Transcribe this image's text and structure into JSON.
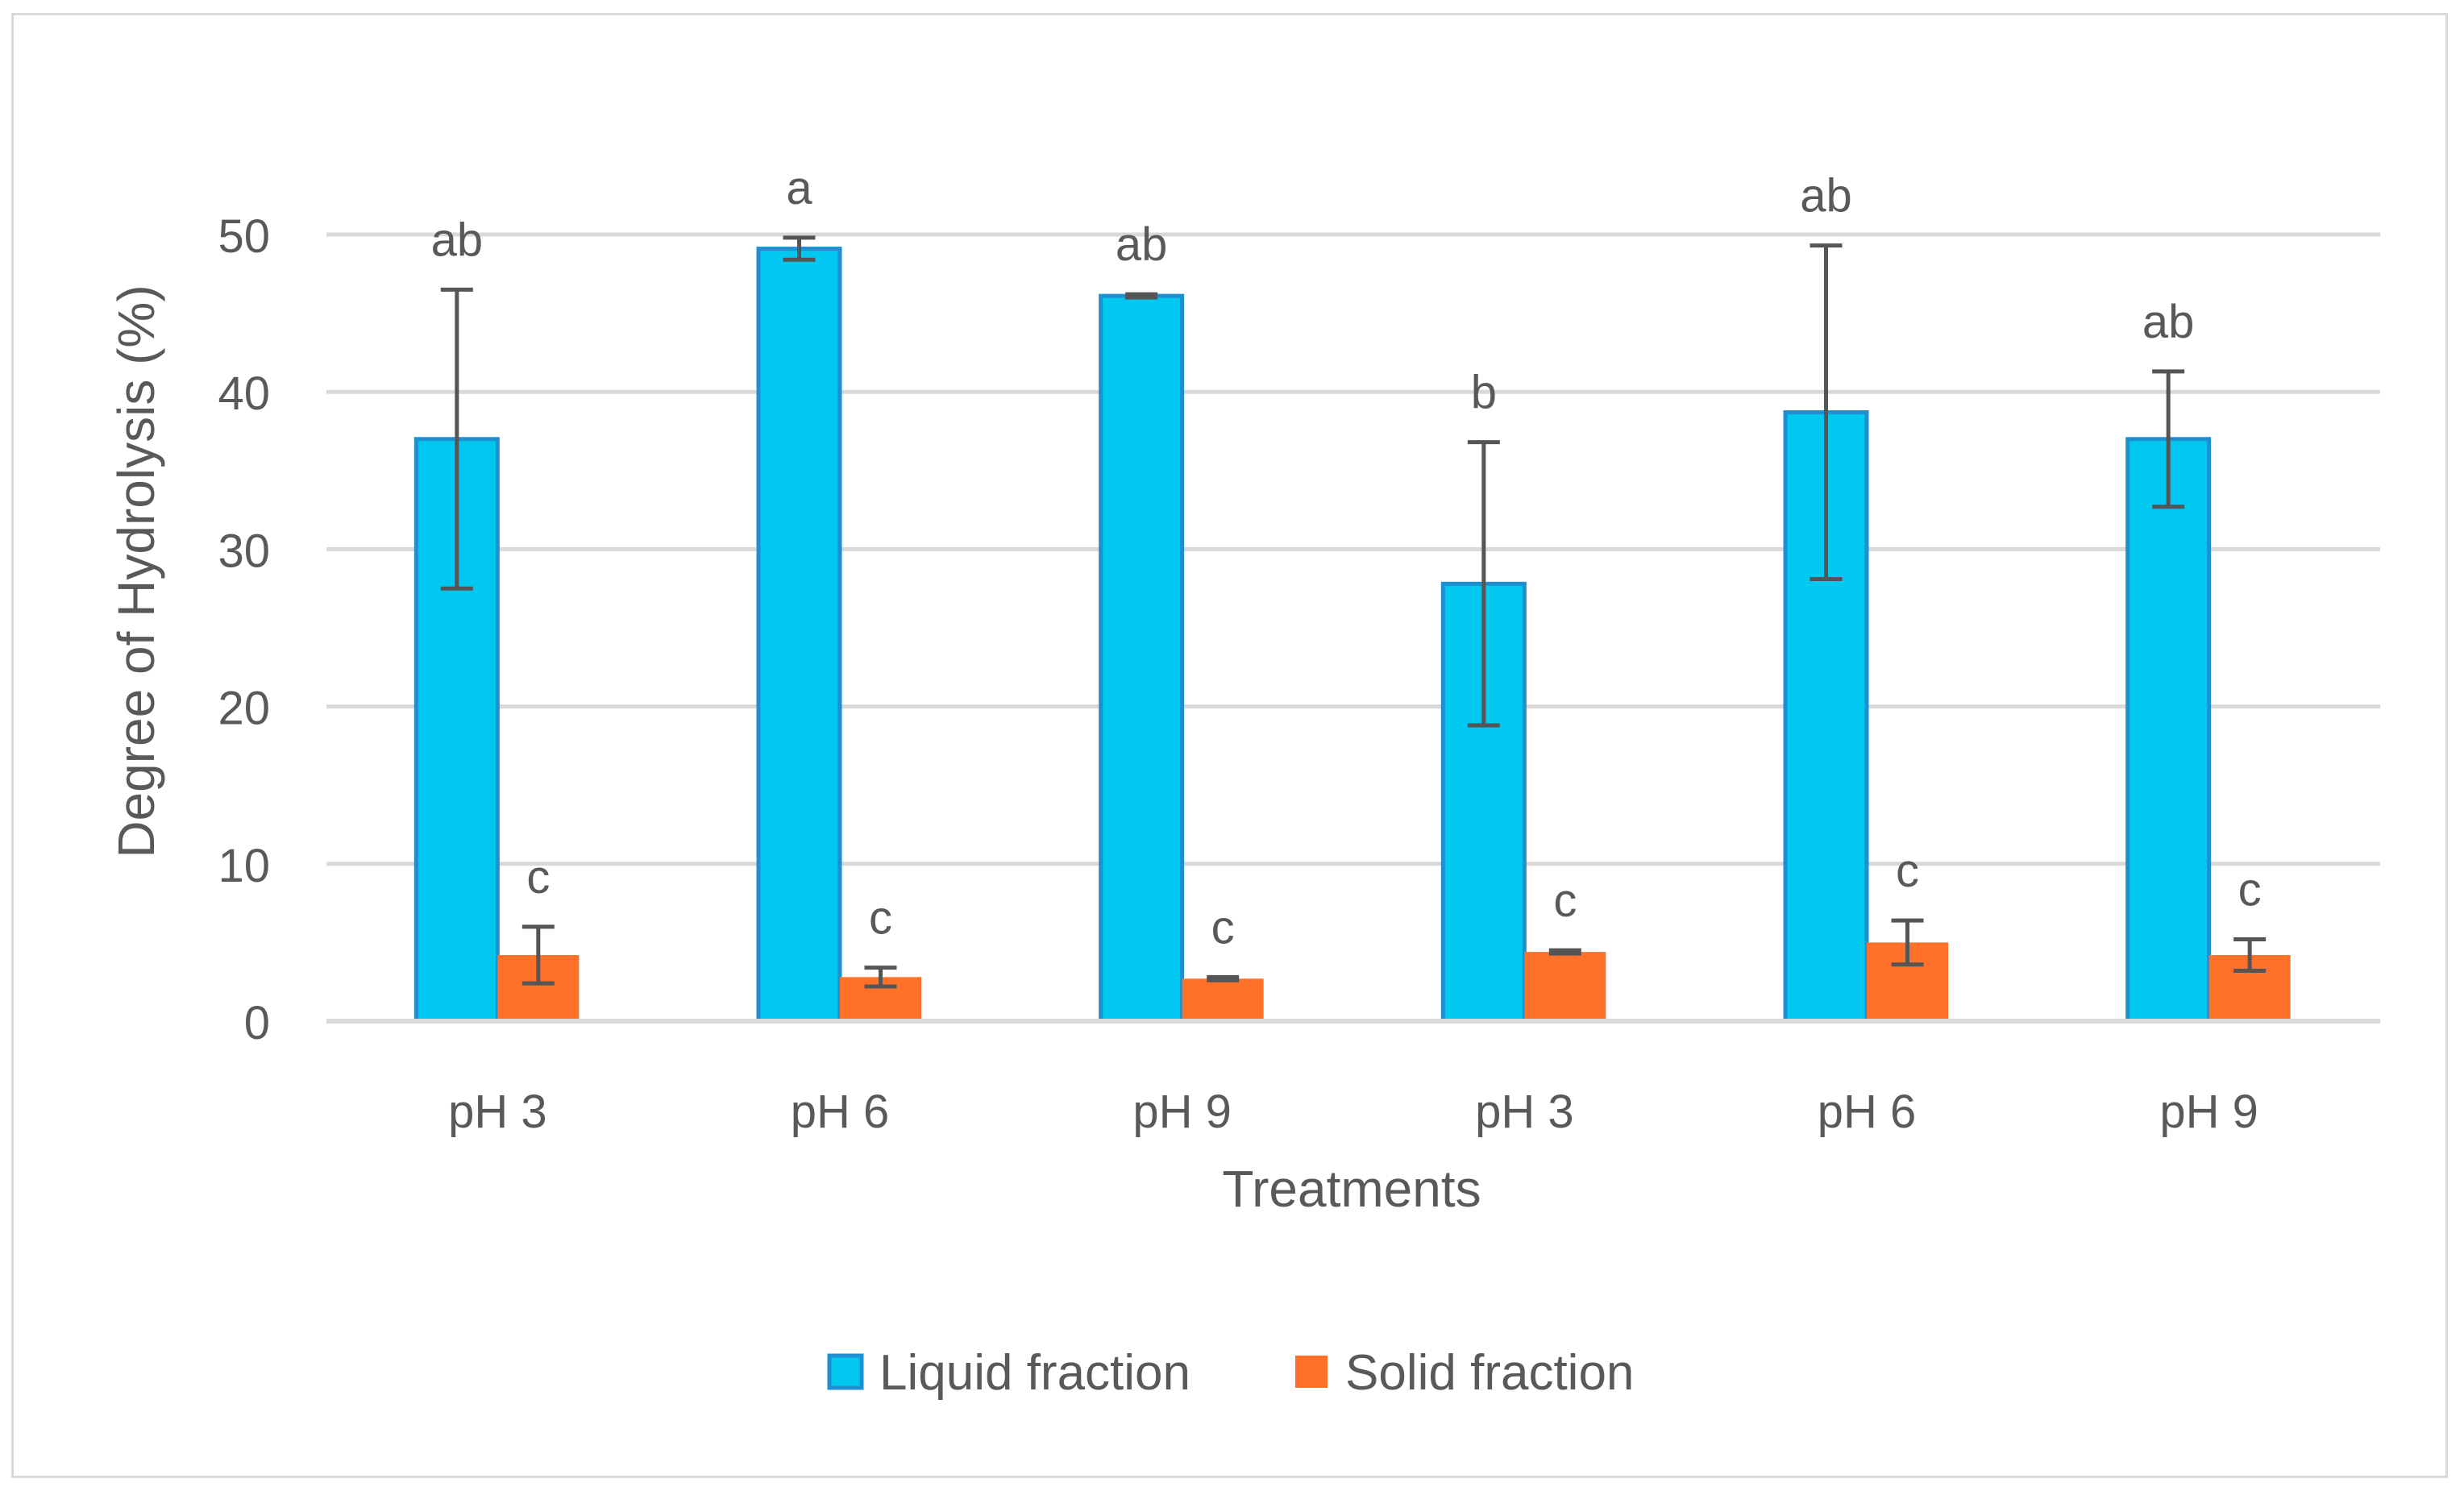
{
  "chart_data": {
    "type": "bar",
    "title": "",
    "xlabel": "Treatments",
    "ylabel": "Degree of Hydrolysis (%)",
    "ylim": [
      0,
      55
    ],
    "yticks": [
      0,
      10,
      20,
      30,
      40,
      50
    ],
    "grid": true,
    "legend_position": "bottom",
    "categories": [
      "pH 3",
      "pH 6",
      "pH 9",
      "pH 3",
      "pH 6",
      "pH 9"
    ],
    "series": [
      {
        "name": "Liquid fraction",
        "color": "#00c8f0",
        "edge_color": "#1e90d0",
        "values": [
          37.0,
          49.1,
          46.1,
          27.8,
          38.7,
          37.0
        ],
        "errors": [
          9.5,
          0.7,
          0.1,
          9.0,
          10.6,
          4.3
        ],
        "letters": [
          "ab",
          "a",
          "ab",
          "b",
          "ab",
          "ab"
        ]
      },
      {
        "name": "Solid fraction",
        "color": "#ff7128",
        "edge_color": "#ff7128",
        "values": [
          4.2,
          2.8,
          2.7,
          4.4,
          5.0,
          4.2
        ],
        "errors": [
          1.8,
          0.6,
          0.1,
          0.1,
          1.4,
          1.0
        ],
        "letters": [
          "c",
          "c",
          "c",
          "c",
          "c",
          "c"
        ]
      }
    ]
  }
}
